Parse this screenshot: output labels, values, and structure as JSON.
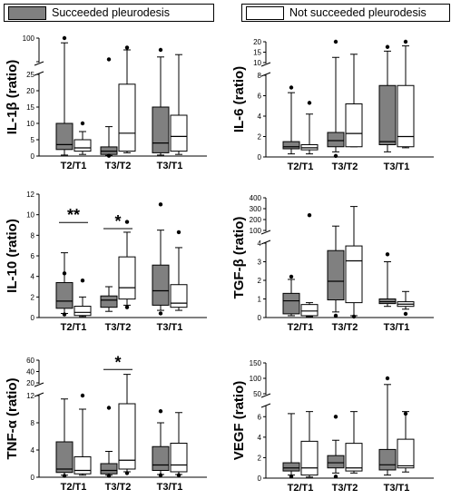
{
  "legend": {
    "succeeded": "Succeeded pleurodesis",
    "not_succeeded": "Not succeeded pleurodesis"
  },
  "colors": {
    "succeeded_fill": "#808080",
    "not_succeeded_fill": "#ffffff",
    "stroke": "#000000"
  },
  "chart_data": [
    {
      "type": "box",
      "ylabel": "IL-1β (ratio)",
      "categories": [
        "T2/T1",
        "T3/T2",
        "T3/T1"
      ],
      "axis_break": true,
      "lower_range": [
        0,
        25
      ],
      "lower_ticks": [
        0,
        5,
        10,
        15,
        20,
        25
      ],
      "upper_range": [
        50,
        100
      ],
      "upper_ticks": [
        50,
        100
      ],
      "upper_tick_labels": [
        "",
        "100"
      ],
      "series": [
        {
          "name": "Succeeded pleurodesis",
          "boxes": [
            {
              "min": 0.3,
              "q1": 2.0,
              "median": 3.5,
              "q3": 10.0,
              "max": 90,
              "outliers": [
                140
              ]
            },
            {
              "min": 0.2,
              "q1": 0.5,
              "median": 1.5,
              "q3": 2.8,
              "max": 9.0,
              "outliers": [
                0.1,
                55
              ]
            },
            {
              "min": 0.3,
              "q1": 1.0,
              "median": 4.0,
              "q3": 15.0,
              "max": 60,
              "outliers": [
                75
              ]
            }
          ]
        },
        {
          "name": "Not succeeded pleurodesis",
          "boxes": [
            {
              "min": 0.5,
              "q1": 1.5,
              "median": 2.5,
              "q3": 5.0,
              "max": 7.5,
              "outliers": [
                10.0
              ]
            },
            {
              "min": 1.0,
              "q1": 1.5,
              "median": 7.0,
              "q3": 22.0,
              "max": 75,
              "outliers": [
                80
              ]
            },
            {
              "min": 0.5,
              "q1": 1.5,
              "median": 6.0,
              "q3": 12.5,
              "max": 65,
              "outliers": []
            }
          ]
        }
      ],
      "annotations": []
    },
    {
      "type": "box",
      "ylabel": "IL-6 (ratio)",
      "categories": [
        "T2/T1",
        "T3/T2",
        "T3/T1"
      ],
      "axis_break": true,
      "lower_range": [
        0,
        8
      ],
      "lower_ticks": [
        0,
        2,
        4,
        6,
        8
      ],
      "upper_range": [
        10,
        20
      ],
      "upper_ticks": [
        10,
        15,
        20
      ],
      "series": [
        {
          "name": "Succeeded pleurodesis",
          "boxes": [
            {
              "min": 0.3,
              "q1": 0.8,
              "median": 1.0,
              "q3": 1.5,
              "max": 6.3,
              "outliers": [
                6.8
              ]
            },
            {
              "min": 0.5,
              "q1": 1.0,
              "median": 1.6,
              "q3": 2.4,
              "max": 12.5,
              "outliers": [
                0.1,
                22
              ]
            },
            {
              "min": 0.5,
              "q1": 1.2,
              "median": 1.5,
              "q3": 7.0,
              "max": 15.5,
              "outliers": [
                17.5
              ]
            }
          ]
        },
        {
          "name": "Not succeeded pleurodesis",
          "boxes": [
            {
              "min": 0.3,
              "q1": 0.7,
              "median": 0.9,
              "q3": 1.2,
              "max": 4.2,
              "outliers": [
                5.3
              ]
            },
            {
              "min": 1.0,
              "q1": 1.0,
              "median": 2.3,
              "q3": 5.2,
              "max": 14.0,
              "outliers": []
            },
            {
              "min": 0.9,
              "q1": 1.0,
              "median": 2.0,
              "q3": 7.0,
              "max": 18.0,
              "outliers": [
                22
              ]
            }
          ]
        }
      ],
      "annotations": []
    },
    {
      "type": "box",
      "ylabel": "IL-10 (ratio)",
      "categories": [
        "T2/T1",
        "T3/T2",
        "T3/T1"
      ],
      "axis_break": false,
      "lower_range": [
        0,
        12
      ],
      "lower_ticks": [
        0,
        2,
        4,
        6,
        8,
        10,
        12
      ],
      "series": [
        {
          "name": "Succeeded pleurodesis",
          "boxes": [
            {
              "min": 0.4,
              "q1": 0.9,
              "median": 1.6,
              "q3": 3.4,
              "max": 6.3,
              "outliers": [
                0.3,
                4.3
              ]
            },
            {
              "min": 0.6,
              "q1": 1.0,
              "median": 1.7,
              "q3": 2.1,
              "max": 3.0,
              "outliers": []
            },
            {
              "min": 0.7,
              "q1": 1.2,
              "median": 2.6,
              "q3": 5.1,
              "max": 8.5,
              "outliers": [
                0.4,
                11.0
              ]
            }
          ]
        },
        {
          "name": "Not succeeded pleurodesis",
          "boxes": [
            {
              "min": 0.1,
              "q1": 0.2,
              "median": 0.5,
              "q3": 1.1,
              "max": 2.0,
              "outliers": [
                3.6
              ]
            },
            {
              "min": 1.2,
              "q1": 1.8,
              "median": 2.9,
              "q3": 5.9,
              "max": 8.3,
              "outliers": [
                1.0,
                9.3
              ]
            },
            {
              "min": 0.7,
              "q1": 1.0,
              "median": 1.4,
              "q3": 3.2,
              "max": 6.8,
              "outliers": [
                8.3
              ]
            }
          ]
        }
      ],
      "annotations": [
        {
          "text": "**",
          "category_index": 0,
          "y": 9.6
        },
        {
          "text": "*",
          "category_index": 1,
          "y": 9.0
        }
      ]
    },
    {
      "type": "box",
      "ylabel": "TGF-β (ratio)",
      "categories": [
        "T2/T1",
        "T3/T2",
        "T3/T1"
      ],
      "axis_break": true,
      "lower_range": [
        0,
        4
      ],
      "lower_ticks": [
        0,
        1,
        2,
        3,
        4
      ],
      "upper_range": [
        100,
        400
      ],
      "upper_ticks": [
        100,
        200,
        300,
        400
      ],
      "series": [
        {
          "name": "Succeeded pleurodesis",
          "boxes": [
            {
              "min": 0.1,
              "q1": 0.2,
              "median": 0.9,
              "q3": 1.3,
              "max": 2.05,
              "outliers": [
                2.2
              ]
            },
            {
              "min": 0.3,
              "q1": 0.95,
              "median": 1.95,
              "q3": 3.6,
              "max": 140,
              "outliers": [
                0.1
              ]
            },
            {
              "min": 0.6,
              "q1": 0.75,
              "median": 0.85,
              "q3": 1.0,
              "max": 3.0,
              "outliers": [
                3.4
              ]
            }
          ]
        },
        {
          "name": "Not succeeded pleurodesis",
          "boxes": [
            {
              "min": 0.05,
              "q1": 0.1,
              "median": 0.35,
              "q3": 0.7,
              "max": 0.8,
              "outliers": [
                240
              ]
            },
            {
              "min": 0.1,
              "q1": 0.8,
              "median": 3.05,
              "q3": 3.85,
              "max": 320,
              "outliers": [
                0.05
              ]
            },
            {
              "min": 0.45,
              "q1": 0.6,
              "median": 0.72,
              "q3": 0.85,
              "max": 1.4,
              "outliers": [
                0.2
              ]
            }
          ]
        }
      ],
      "annotations": []
    },
    {
      "type": "box",
      "ylabel": "TNF-α (ratio)",
      "categories": [
        "T2/T1",
        "T3/T2",
        "T3/T1"
      ],
      "axis_break": true,
      "lower_range": [
        0,
        12
      ],
      "lower_ticks": [
        0,
        4,
        8,
        12
      ],
      "upper_range": [
        20,
        60
      ],
      "upper_ticks": [
        20,
        40,
        60
      ],
      "series": [
        {
          "name": "Succeeded pleurodesis",
          "boxes": [
            {
              "min": 0.3,
              "q1": 0.7,
              "median": 1.2,
              "q3": 5.2,
              "max": 11.5,
              "outliers": [
                0.2
              ]
            },
            {
              "min": 0.3,
              "q1": 0.5,
              "median": 1.0,
              "q3": 2.0,
              "max": 3.8,
              "outliers": [
                0.2,
                10.2
              ]
            },
            {
              "min": 0.4,
              "q1": 1.0,
              "median": 1.8,
              "q3": 4.5,
              "max": 8.0,
              "outliers": [
                0.3,
                9.7
              ]
            }
          ]
        },
        {
          "name": "Not succeeded pleurodesis",
          "boxes": [
            {
              "min": 0.3,
              "q1": 0.5,
              "median": 1.0,
              "q3": 3.0,
              "max": 10.0,
              "outliers": [
                12.0
              ]
            },
            {
              "min": 0.8,
              "q1": 1.2,
              "median": 2.5,
              "q3": 10.8,
              "max": 35,
              "outliers": [
                0.6
              ]
            },
            {
              "min": 0.4,
              "q1": 0.8,
              "median": 1.8,
              "q3": 5.0,
              "max": 9.5,
              "outliers": [
                0.3
              ]
            }
          ]
        }
      ],
      "annotations": [
        {
          "text": "*",
          "category_index": 1,
          "y": 50
        }
      ]
    },
    {
      "type": "box",
      "ylabel": "VEGF (ratio)",
      "categories": [
        "T2/T1",
        "T3/T2",
        "T3/T1"
      ],
      "axis_break": true,
      "lower_range": [
        0,
        7
      ],
      "lower_ticks": [
        0,
        2,
        4,
        6
      ],
      "upper_range": [
        50,
        150
      ],
      "upper_ticks": [
        50,
        100,
        150
      ],
      "series": [
        {
          "name": "Succeeded pleurodesis",
          "boxes": [
            {
              "min": 0.3,
              "q1": 0.7,
              "median": 1.0,
              "q3": 1.5,
              "max": 6.3,
              "outliers": [
                0.15
              ]
            },
            {
              "min": 0.5,
              "q1": 1.0,
              "median": 1.5,
              "q3": 2.2,
              "max": 3.7,
              "outliers": [
                0.15,
                6.0
              ]
            },
            {
              "min": 0.3,
              "q1": 0.8,
              "median": 1.3,
              "q3": 2.8,
              "max": 80,
              "outliers": [
                100
              ]
            }
          ]
        },
        {
          "name": "Not succeeded pleurodesis",
          "boxes": [
            {
              "min": 0.1,
              "q1": 0.3,
              "median": 1.0,
              "q3": 3.6,
              "max": 6.5,
              "outliers": []
            },
            {
              "min": 0.5,
              "q1": 0.7,
              "median": 1.0,
              "q3": 3.4,
              "max": 6.5,
              "outliers": []
            },
            {
              "min": 0.6,
              "q1": 1.0,
              "median": 1.2,
              "q3": 3.8,
              "max": 6.5,
              "outliers": [
                6.3
              ]
            }
          ]
        }
      ],
      "annotations": []
    }
  ]
}
